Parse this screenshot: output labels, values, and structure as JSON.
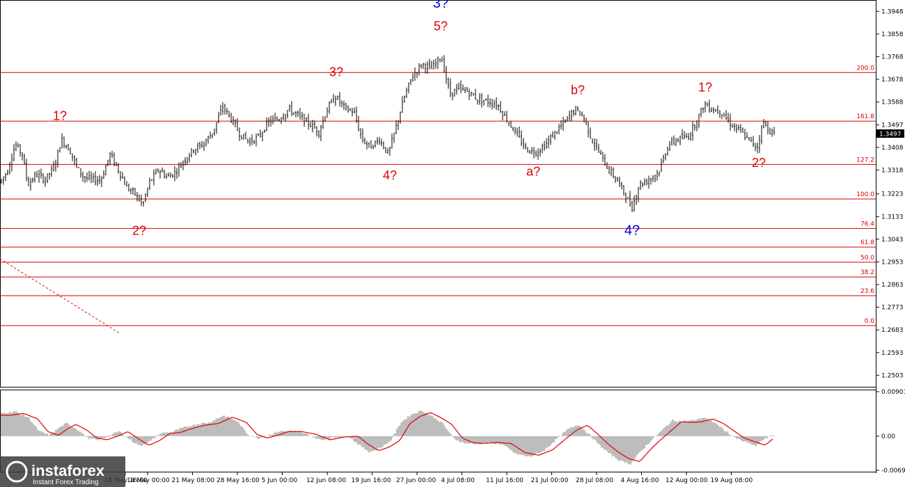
{
  "chart_data": {
    "type": "candlestick",
    "price_axis": {
      "range": [
        1.2457,
        1.3993
      ],
      "ticks": [
        "1.3948",
        "1.3858",
        "1.3768",
        "1.3678",
        "1.3588",
        "1.3497",
        "1.3408",
        "1.3318",
        "1.3223",
        "1.3133",
        "1.3043",
        "1.2953",
        "1.2863",
        "1.2773",
        "1.2683",
        "1.2593",
        "1.2503"
      ],
      "current_price": "1.3497"
    },
    "time_axis": {
      "ticks": [
        "16 May 16:00",
        "14 May 00:00",
        "21 May 08:00",
        "28 May 16:00",
        "5 Jun 00:00",
        "12 Jun 08:00",
        "19 Jun 16:00",
        "27 Jun 00:00",
        "4 Jul 08:00",
        "11 Jul 16:00",
        "21 Jul 00:00",
        "28 Jul 08:00",
        "4 Aug 16:00",
        "12 Aug 00:00",
        "19 Aug 08:00"
      ]
    },
    "fib_levels": [
      {
        "label": "200.0",
        "price": 1.3705
      },
      {
        "label": "161.8",
        "price": 1.3512
      },
      {
        "label": "127.2",
        "price": 1.334
      },
      {
        "label": "100.0",
        "price": 1.3203
      },
      {
        "label": "76.4",
        "price": 1.3086
      },
      {
        "label": "61.8",
        "price": 1.3012
      },
      {
        "label": "50.0",
        "price": 1.2952
      },
      {
        "label": "38.2",
        "price": 1.2893
      },
      {
        "label": "23.6",
        "price": 1.2819
      },
      {
        "label": "0.0",
        "price": 1.27
      }
    ],
    "wave_labels": [
      {
        "text": "1?",
        "color": "red",
        "x": 86,
        "price": 1.3517
      },
      {
        "text": "2?",
        "color": "red",
        "x": 200,
        "price": 1.306
      },
      {
        "text": "3?",
        "color": "red",
        "x": 483,
        "price": 1.369
      },
      {
        "text": "4?",
        "color": "red",
        "x": 560,
        "price": 1.328
      },
      {
        "text": "3?",
        "color": "blue",
        "x": 633,
        "price": 1.3963
      },
      {
        "text": "5?",
        "color": "red",
        "x": 633,
        "price": 1.3873
      },
      {
        "text": "b?",
        "color": "red",
        "x": 830,
        "price": 1.3618
      },
      {
        "text": "a?",
        "color": "red",
        "x": 766,
        "price": 1.3295
      },
      {
        "text": "4?",
        "color": "blue",
        "x": 908,
        "price": 1.306
      },
      {
        "text": "1?",
        "color": "red",
        "x": 1013,
        "price": 1.363
      },
      {
        "text": "2?",
        "color": "red",
        "x": 1090,
        "price": 1.333
      }
    ],
    "price_path": [
      [
        0,
        1.327
      ],
      [
        10,
        1.331
      ],
      [
        22,
        1.342
      ],
      [
        32,
        1.338
      ],
      [
        40,
        1.326
      ],
      [
        52,
        1.33
      ],
      [
        65,
        1.328
      ],
      [
        78,
        1.333
      ],
      [
        88,
        1.344
      ],
      [
        100,
        1.34
      ],
      [
        110,
        1.333
      ],
      [
        120,
        1.329
      ],
      [
        132,
        1.328
      ],
      [
        145,
        1.328
      ],
      [
        158,
        1.338
      ],
      [
        170,
        1.332
      ],
      [
        182,
        1.325
      ],
      [
        195,
        1.322
      ],
      [
        205,
        1.318
      ],
      [
        215,
        1.327
      ],
      [
        228,
        1.332
      ],
      [
        240,
        1.329
      ],
      [
        252,
        1.331
      ],
      [
        265,
        1.336
      ],
      [
        278,
        1.34
      ],
      [
        292,
        1.342
      ],
      [
        306,
        1.347
      ],
      [
        320,
        1.357
      ],
      [
        332,
        1.352
      ],
      [
        345,
        1.346
      ],
      [
        358,
        1.343
      ],
      [
        372,
        1.345
      ],
      [
        386,
        1.351
      ],
      [
        400,
        1.352
      ],
      [
        415,
        1.356
      ],
      [
        430,
        1.353
      ],
      [
        445,
        1.35
      ],
      [
        458,
        1.347
      ],
      [
        470,
        1.356
      ],
      [
        482,
        1.361
      ],
      [
        496,
        1.356
      ],
      [
        508,
        1.355
      ],
      [
        520,
        1.344
      ],
      [
        532,
        1.341
      ],
      [
        545,
        1.344
      ],
      [
        558,
        1.338
      ],
      [
        568,
        1.348
      ],
      [
        580,
        1.36
      ],
      [
        592,
        1.369
      ],
      [
        606,
        1.374
      ],
      [
        620,
        1.372
      ],
      [
        634,
        1.377
      ],
      [
        646,
        1.362
      ],
      [
        658,
        1.364
      ],
      [
        672,
        1.363
      ],
      [
        686,
        1.36
      ],
      [
        700,
        1.359
      ],
      [
        714,
        1.358
      ],
      [
        728,
        1.352
      ],
      [
        742,
        1.346
      ],
      [
        756,
        1.34
      ],
      [
        770,
        1.339
      ],
      [
        784,
        1.342
      ],
      [
        798,
        1.347
      ],
      [
        812,
        1.351
      ],
      [
        826,
        1.356
      ],
      [
        838,
        1.353
      ],
      [
        850,
        1.344
      ],
      [
        862,
        1.338
      ],
      [
        874,
        1.332
      ],
      [
        886,
        1.328
      ],
      [
        898,
        1.322
      ],
      [
        908,
        1.317
      ],
      [
        918,
        1.326
      ],
      [
        932,
        1.328
      ],
      [
        946,
        1.331
      ],
      [
        960,
        1.342
      ],
      [
        974,
        1.344
      ],
      [
        988,
        1.345
      ],
      [
        1000,
        1.351
      ],
      [
        1012,
        1.358
      ],
      [
        1024,
        1.356
      ],
      [
        1036,
        1.355
      ],
      [
        1050,
        1.35
      ],
      [
        1064,
        1.347
      ],
      [
        1078,
        1.343
      ],
      [
        1088,
        1.341
      ],
      [
        1096,
        1.351
      ],
      [
        1104,
        1.348
      ],
      [
        1112,
        1.346
      ]
    ],
    "oscillator": {
      "range": [
        -0.00692,
        0.00901
      ],
      "ticks": [
        "0.00901",
        "0.00",
        "-0.00692"
      ],
      "path": [
        [
          0,
          0.0046
        ],
        [
          20,
          0.005
        ],
        [
          40,
          0.0038
        ],
        [
          55,
          0.001
        ],
        [
          70,
          0.0002
        ],
        [
          85,
          0.0018
        ],
        [
          95,
          0.0026
        ],
        [
          110,
          0.0014
        ],
        [
          125,
          -0.0004
        ],
        [
          140,
          -0.0008
        ],
        [
          155,
          0.0
        ],
        [
          170,
          0.001
        ],
        [
          185,
          -0.0006
        ],
        [
          200,
          -0.002
        ],
        [
          215,
          -0.001
        ],
        [
          230,
          0.0006
        ],
        [
          245,
          0.0008
        ],
        [
          260,
          0.0016
        ],
        [
          280,
          0.0024
        ],
        [
          300,
          0.0028
        ],
        [
          320,
          0.0042
        ],
        [
          340,
          0.003
        ],
        [
          355,
          0.0004
        ],
        [
          370,
          -0.0004
        ],
        [
          385,
          0.0002
        ],
        [
          400,
          0.001
        ],
        [
          420,
          0.001
        ],
        [
          440,
          0.0004
        ],
        [
          460,
          -0.0008
        ],
        [
          480,
          -0.0002
        ],
        [
          500,
          0.0
        ],
        [
          515,
          -0.0018
        ],
        [
          530,
          -0.0032
        ],
        [
          545,
          -0.0024
        ],
        [
          560,
          -0.001
        ],
        [
          575,
          0.0028
        ],
        [
          590,
          0.0044
        ],
        [
          605,
          0.0052
        ],
        [
          620,
          0.004
        ],
        [
          635,
          0.0026
        ],
        [
          650,
          -0.0004
        ],
        [
          665,
          -0.0014
        ],
        [
          680,
          -0.0016
        ],
        [
          700,
          -0.0014
        ],
        [
          720,
          -0.0016
        ],
        [
          740,
          -0.0036
        ],
        [
          760,
          -0.0042
        ],
        [
          780,
          -0.003
        ],
        [
          800,
          -0.0004
        ],
        [
          815,
          0.0014
        ],
        [
          830,
          0.0024
        ],
        [
          845,
          0.0004
        ],
        [
          860,
          -0.0018
        ],
        [
          875,
          -0.0036
        ],
        [
          890,
          -0.005
        ],
        [
          905,
          -0.0056
        ],
        [
          920,
          -0.003
        ],
        [
          935,
          -0.0008
        ],
        [
          950,
          0.0012
        ],
        [
          965,
          0.0032
        ],
        [
          980,
          0.003
        ],
        [
          995,
          0.0032
        ],
        [
          1010,
          0.0038
        ],
        [
          1025,
          0.0028
        ],
        [
          1040,
          0.0012
        ],
        [
          1055,
          -0.0004
        ],
        [
          1070,
          -0.0012
        ],
        [
          1085,
          -0.002
        ],
        [
          1098,
          -0.0004
        ],
        [
          1112,
          0.0002
        ]
      ]
    }
  },
  "branding": {
    "name": "instaforex",
    "tagline": "Instant Forex Trading"
  }
}
